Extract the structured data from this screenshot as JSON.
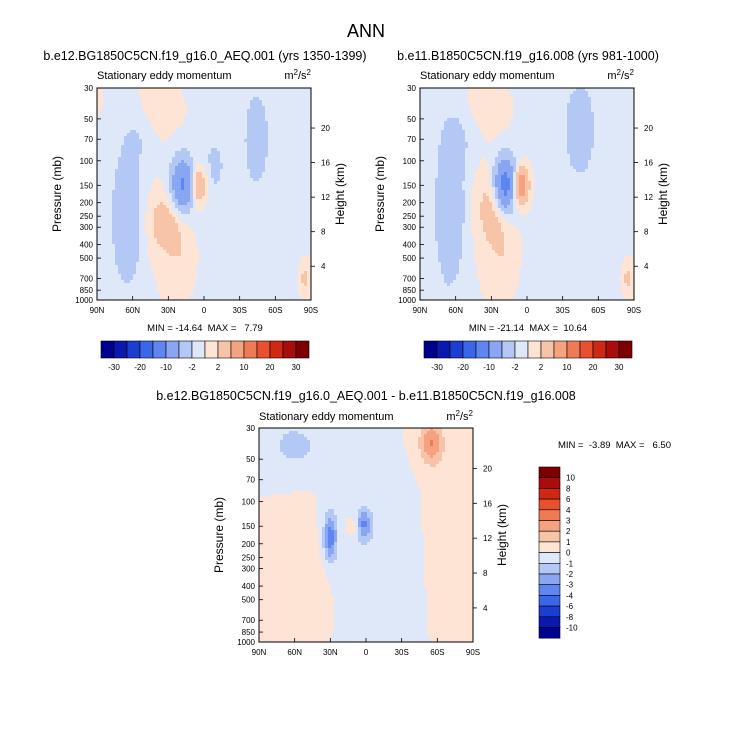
{
  "page": {
    "title": "ANN"
  },
  "chart_data": [
    {
      "type": "heatmap",
      "title": "b.e12.BG1850C5CN.f19_g16.0_AEQ.001 (yrs 1350-1399)",
      "subtitle_left": "Stationary eddy momentum",
      "units": "m2/s2",
      "xlabel": "",
      "ylabel": "Pressure (mb)",
      "ylabel_right": "Height (km)",
      "x_ticks": [
        "90N",
        "60N",
        "30N",
        "0",
        "30S",
        "60S",
        "90S"
      ],
      "y_ticks": [
        30,
        50,
        70,
        100,
        150,
        200,
        250,
        300,
        400,
        500,
        700,
        850,
        1000
      ],
      "y_scale": "log",
      "ylim": [
        1000,
        30
      ],
      "height_ticks": [
        4,
        8,
        12,
        16,
        20
      ],
      "stats": "MIN = -14.64  MAX =   7.79",
      "features": [
        {
          "lat": 18,
          "p": 150,
          "sx": 7,
          "sy": 0.32,
          "v": -11
        },
        {
          "lat": 5,
          "p": 150,
          "sx": 5,
          "sy": 0.22,
          "v": 7
        },
        {
          "lat": -8,
          "p": 110,
          "sx": 8,
          "sy": 0.45,
          "v": -2
        },
        {
          "lat": 65,
          "p": 260,
          "sx": 9,
          "sy": 0.8,
          "v": -5
        },
        {
          "lat": 32,
          "p": 280,
          "sx": 10,
          "sy": 0.35,
          "v": 4
        },
        {
          "lat": 55,
          "p": 60,
          "sx": 10,
          "sy": 0.4,
          "v": -2
        },
        {
          "lat": -45,
          "p": 70,
          "sx": 12,
          "sy": 0.9,
          "v": -2
        },
        {
          "lat": -85,
          "p": 700,
          "sx": 3,
          "sy": 0.15,
          "v": 3
        },
        {
          "lat": 20,
          "p": 500,
          "sx": 8,
          "sy": 0.4,
          "v": 1.5
        },
        {
          "lat": 45,
          "p": 45,
          "sx": 15,
          "sy": 0.3,
          "v": 1.5
        }
      ]
    },
    {
      "type": "heatmap",
      "title": "b.e11.B1850C5CN.f19_g16.008 (yrs 981-1000)",
      "subtitle_left": "Stationary eddy momentum",
      "units": "m2/s2",
      "xlabel": "",
      "ylabel": "Pressure (mb)",
      "ylabel_right": "Height (km)",
      "x_ticks": [
        "90N",
        "60N",
        "30N",
        "0",
        "30S",
        "60S",
        "90S"
      ],
      "y_ticks": [
        30,
        50,
        70,
        100,
        150,
        200,
        250,
        300,
        400,
        500,
        700,
        850,
        1000
      ],
      "y_scale": "log",
      "ylim": [
        1000,
        30
      ],
      "height_ticks": [
        4,
        8,
        12,
        16,
        20
      ],
      "stats": "MIN = -21.14  MAX =  10.64",
      "features": [
        {
          "lat": 18,
          "p": 150,
          "sx": 7,
          "sy": 0.32,
          "v": -14
        },
        {
          "lat": 6,
          "p": 150,
          "sx": 5,
          "sy": 0.22,
          "v": 10
        },
        {
          "lat": 65,
          "p": 230,
          "sx": 9,
          "sy": 0.9,
          "v": -5
        },
        {
          "lat": 28,
          "p": 220,
          "sx": 10,
          "sy": 0.45,
          "v": 4
        },
        {
          "lat": -45,
          "p": 60,
          "sx": 10,
          "sy": 0.6,
          "v": -3
        },
        {
          "lat": 55,
          "p": 60,
          "sx": 12,
          "sy": 0.4,
          "v": -2
        },
        {
          "lat": -85,
          "p": 700,
          "sx": 3,
          "sy": 0.15,
          "v": 3
        },
        {
          "lat": 20,
          "p": 500,
          "sx": 8,
          "sy": 0.4,
          "v": 1.5
        },
        {
          "lat": 40,
          "p": 45,
          "sx": 15,
          "sy": 0.3,
          "v": 1.5
        }
      ]
    },
    {
      "type": "heatmap",
      "title": "b.e12.BG1850C5CN.f19_g16.0_AEQ.001 - b.e11.B1850C5CN.f19_g16.008",
      "subtitle_left": "Stationary eddy momentum",
      "units": "m2/s2",
      "xlabel": "",
      "ylabel": "Pressure (mb)",
      "ylabel_right": "Height (km)",
      "x_ticks": [
        "90N",
        "60N",
        "30N",
        "0",
        "30S",
        "60S",
        "90S"
      ],
      "y_ticks": [
        30,
        50,
        70,
        100,
        150,
        200,
        250,
        300,
        400,
        500,
        700,
        850,
        1000
      ],
      "y_scale": "log",
      "ylim": [
        1000,
        30
      ],
      "height_ticks": [
        4,
        8,
        12,
        16,
        20
      ],
      "stats": "MIN =  -3.89  MAX =   6.50",
      "features": [
        {
          "lat": 30,
          "p": 180,
          "sx": 4,
          "sy": 0.28,
          "v": -3.6
        },
        {
          "lat": 2,
          "p": 145,
          "sx": 5,
          "sy": 0.18,
          "v": -3
        },
        {
          "lat": 10,
          "p": 150,
          "sx": 4,
          "sy": 0.12,
          "v": 1.2
        },
        {
          "lat": -55,
          "p": 38,
          "sx": 7,
          "sy": 0.25,
          "v": 3
        },
        {
          "lat": 60,
          "p": 40,
          "sx": 14,
          "sy": 0.25,
          "v": -1.5
        },
        {
          "lat": -10,
          "p": 300,
          "sx": 25,
          "sy": 0.8,
          "v": -0.6
        },
        {
          "lat": -65,
          "p": 200,
          "sx": 10,
          "sy": 0.8,
          "v": 0.7
        },
        {
          "lat": 50,
          "p": 400,
          "sx": 14,
          "sy": 0.6,
          "v": 0.6
        }
      ]
    }
  ],
  "colorbars": {
    "shared": {
      "labels": [
        "-30",
        "-20",
        "-10",
        "-2",
        "2",
        "10",
        "20",
        "30"
      ],
      "levels": [
        -30,
        -25,
        -20,
        -15,
        -10,
        -5,
        -2,
        0,
        2,
        5,
        10,
        15,
        20,
        25,
        30
      ],
      "colors": [
        "#00008f",
        "#0a18b0",
        "#1b3ed0",
        "#3a66e8",
        "#5f86f0",
        "#89a6f3",
        "#b3c8f5",
        "#dfe8f8",
        "#fde4d4",
        "#f8c4a8",
        "#f5a280",
        "#ef7b55",
        "#e85030",
        "#cf2813",
        "#a90c0a",
        "#7c0000"
      ]
    },
    "diff": {
      "labels": [
        "10",
        "8",
        "6",
        "4",
        "3",
        "2",
        "1",
        "0",
        "-1",
        "-2",
        "-3",
        "-4",
        "-6",
        "-8",
        "-10"
      ],
      "levels": [
        -10,
        -8,
        -6,
        -4,
        -3,
        -2,
        -1,
        0,
        1,
        2,
        3,
        4,
        6,
        8,
        10
      ],
      "colors": [
        "#00008f",
        "#0a18b0",
        "#1b3ed0",
        "#3a66e8",
        "#5f86f0",
        "#89a6f3",
        "#b3c8f5",
        "#dfe8f8",
        "#fde4d4",
        "#f8c4a8",
        "#f5a280",
        "#ef7b55",
        "#e85030",
        "#cf2813",
        "#a90c0a",
        "#7c0000"
      ]
    }
  }
}
